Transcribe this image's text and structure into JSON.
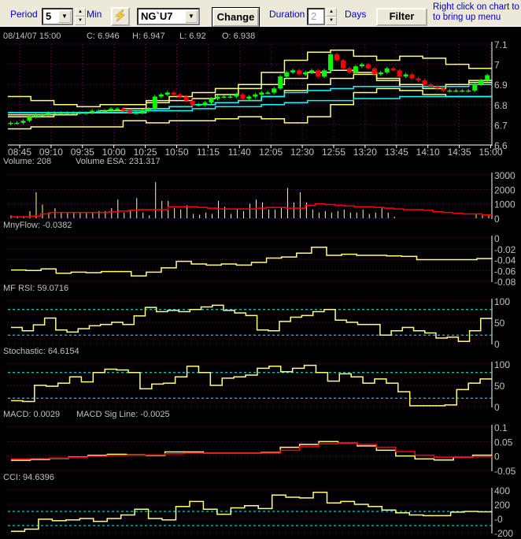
{
  "toolbar": {
    "period_label": "Period",
    "period_value": "5",
    "period_unit": "Min",
    "symbol": "NG`U7",
    "change_label": "Change",
    "duration_label": "Duration",
    "duration_value": "2",
    "duration_unit": "Days",
    "filter_label": "Filter",
    "hint_line1": "Right click on chart to",
    "hint_line2": "to bring up menu",
    "refresh_icon": "lightning-bolt-icon"
  },
  "info": {
    "datetime": "08/14/07 15:00",
    "close": "C: 6.946",
    "high": "H: 6.947",
    "low": "L: 6.92",
    "open": "O: 6.938"
  },
  "colors": {
    "up": "#00ff00",
    "down": "#ff0000",
    "band": "#ffff80",
    "ma": "#00ffff",
    "grid": "#800080",
    "text": "#c0c0c0",
    "signal": "#ff0000"
  },
  "chart_data": [
    {
      "type": "candlestick",
      "name": "price",
      "y_ticks": [
        "7.1",
        "7",
        "6.9",
        "6.8",
        "6.7",
        "6.6"
      ],
      "ylim": [
        6.6,
        7.1
      ],
      "x_ticks": [
        "08:45",
        "09:10",
        "09:35",
        "10:00",
        "10:25",
        "10:50",
        "11:15",
        "11:40",
        "12:05",
        "12:30",
        "12:55",
        "13:20",
        "13:45",
        "14:10",
        "14:35",
        "15:00"
      ],
      "close": [
        6.71,
        6.71,
        6.72,
        6.74,
        6.75,
        6.75,
        6.76,
        6.76,
        6.76,
        6.76,
        6.76,
        6.76,
        6.76,
        6.77,
        6.77,
        6.77,
        6.78,
        6.78,
        6.77,
        6.76,
        6.76,
        6.77,
        6.78,
        6.84,
        6.85,
        6.86,
        6.85,
        6.84,
        6.82,
        6.8,
        6.8,
        6.81,
        6.83,
        6.84,
        6.84,
        6.84,
        6.85,
        6.83,
        6.84,
        6.85,
        6.86,
        6.86,
        6.88,
        6.94,
        6.96,
        6.97,
        6.95,
        6.96,
        6.97,
        6.94,
        6.97,
        7.05,
        7.02,
        6.98,
        6.96,
        6.99,
        7.0,
        6.98,
        6.95,
        6.96,
        6.98,
        6.97,
        6.94,
        6.95,
        6.93,
        6.92,
        6.9,
        6.89,
        6.88,
        6.87,
        6.87,
        6.87,
        6.87,
        6.87,
        6.9,
        6.92,
        6.946
      ],
      "bands": {
        "upper": [
          6.84,
          6.82,
          6.8,
          6.79,
          6.8,
          6.8,
          6.82,
          6.84,
          6.86,
          6.88,
          6.9,
          6.96,
          7.02,
          7.06,
          7.07,
          7.04,
          7.02,
          7.04,
          7.03,
          7.0,
          6.98
        ],
        "inner_upper": [
          6.75,
          6.75,
          6.75,
          6.76,
          6.77,
          6.78,
          6.81,
          6.82,
          6.83,
          6.85,
          6.88,
          6.9,
          6.93,
          6.96,
          6.97,
          6.96,
          6.93,
          6.9,
          6.89,
          6.9,
          6.92
        ],
        "inner_lower": [
          6.74,
          6.74,
          6.75,
          6.76,
          6.76,
          6.76,
          6.78,
          6.79,
          6.8,
          6.81,
          6.82,
          6.84,
          6.87,
          6.9,
          6.93,
          6.95,
          6.92,
          6.89,
          6.88,
          6.9,
          6.91
        ],
        "lower": [
          6.68,
          6.69,
          6.69,
          6.69,
          6.69,
          6.72,
          6.71,
          6.72,
          6.72,
          6.73,
          6.74,
          6.73,
          6.71,
          6.74,
          6.8,
          6.86,
          6.88,
          6.87,
          6.85,
          6.84,
          6.84
        ],
        "ma_fast": [
          6.76,
          6.76,
          6.76,
          6.76,
          6.76,
          6.77,
          6.78,
          6.79,
          6.8,
          6.81,
          6.82,
          6.84,
          6.86,
          6.87,
          6.88,
          6.89,
          6.89,
          6.89,
          6.89,
          6.89,
          6.9
        ],
        "ma_slow": [
          6.76,
          6.76,
          6.76,
          6.76,
          6.76,
          6.76,
          6.77,
          6.77,
          6.78,
          6.79,
          6.79,
          6.8,
          6.81,
          6.82,
          6.82,
          6.83,
          6.83,
          6.84,
          6.84,
          6.84,
          6.84
        ]
      }
    },
    {
      "type": "bar",
      "name": "volume",
      "label": "Volume: 208",
      "label2": "Volume ESA: 231.317",
      "y_ticks": [
        "3000",
        "2000",
        "1000",
        "0"
      ],
      "ylim": [
        0,
        3000
      ],
      "values": [
        200,
        150,
        150,
        500,
        1800,
        950,
        400,
        700,
        400,
        400,
        400,
        400,
        400,
        400,
        500,
        500,
        700,
        1300,
        400,
        500,
        1400,
        400,
        200,
        2500,
        1200,
        1200,
        700,
        600,
        900,
        300,
        250,
        400,
        300,
        1200,
        800,
        300,
        600,
        500,
        1000,
        1300,
        1100,
        600,
        600,
        700,
        2100,
        1100,
        1800,
        1100,
        600,
        400,
        500,
        400,
        500,
        600,
        400,
        400,
        600,
        300,
        400,
        700,
        400,
        100,
        0,
        0,
        0,
        0,
        0,
        0,
        0,
        0,
        0,
        0,
        0,
        0,
        300,
        200,
        208
      ],
      "esa": [
        100,
        100,
        150,
        300,
        400,
        400,
        400,
        400,
        400,
        400,
        450,
        500,
        550,
        600,
        600,
        600,
        800,
        800,
        800,
        750,
        700,
        650,
        650,
        650,
        650,
        700,
        750,
        750,
        700,
        700,
        900,
        1000,
        950,
        900,
        850,
        800,
        800,
        750,
        700,
        650,
        600,
        600,
        550,
        450,
        400,
        350,
        300,
        300,
        231
      ]
    },
    {
      "type": "line",
      "name": "money-flow",
      "label": "MnyFlow: -0.0382",
      "y_ticks": [
        "0",
        "-0.02",
        "-0.04",
        "-0.06",
        "-0.08"
      ],
      "ylim": [
        -0.08,
        0
      ],
      "values": [
        -0.059,
        -0.06,
        -0.057,
        -0.065,
        -0.063,
        -0.064,
        -0.062,
        -0.062,
        -0.07,
        -0.063,
        -0.055,
        -0.043,
        -0.048,
        -0.05,
        -0.048,
        -0.05,
        -0.045,
        -0.037,
        -0.035,
        -0.028,
        -0.017,
        -0.032,
        -0.03,
        -0.032,
        -0.032,
        -0.033,
        -0.034,
        -0.04,
        -0.04,
        -0.04,
        -0.04,
        -0.038
      ]
    },
    {
      "type": "line",
      "name": "mf-rsi",
      "label": "MF RSI: 59.0716",
      "y_ticks": [
        "100",
        "50",
        "0"
      ],
      "ylim": [
        0,
        100
      ],
      "levels": [
        80,
        20
      ],
      "values": [
        38,
        30,
        44,
        60,
        32,
        27,
        35,
        42,
        45,
        50,
        45,
        65,
        85,
        75,
        78,
        75,
        80,
        86,
        90,
        78,
        72,
        66,
        32,
        30,
        52,
        62,
        66,
        75,
        80,
        55,
        50,
        45,
        45,
        20,
        30,
        38,
        30,
        25,
        13,
        15,
        5,
        30,
        59
      ]
    },
    {
      "type": "line",
      "name": "stochastic",
      "label": "Stochastic: 64.6154",
      "y_ticks": [
        "100",
        "50",
        "0"
      ],
      "ylim": [
        0,
        100
      ],
      "levels": [
        80,
        20
      ],
      "values": [
        14,
        12,
        50,
        48,
        55,
        70,
        58,
        80,
        88,
        86,
        80,
        42,
        53,
        55,
        70,
        95,
        80,
        50,
        67,
        70,
        74,
        90,
        95,
        82,
        90,
        97,
        80,
        60,
        77,
        70,
        55,
        65,
        55,
        35,
        2,
        2,
        2,
        4,
        40,
        55,
        65
      ]
    },
    {
      "type": "line",
      "name": "macd",
      "label": "MACD: 0.0029",
      "label2": "MACD Sig Line: -0.0025",
      "y_ticks": [
        "0.1",
        "0.05",
        "0",
        "-0.05"
      ],
      "ylim": [
        -0.05,
        0.1
      ],
      "values": [
        -0.015,
        -0.012,
        -0.008,
        -0.003,
        0.002,
        0.006,
        0.004,
        0.002,
        0.014,
        0.014,
        0.01,
        0.01,
        0.01,
        0.012,
        0.03,
        0.04,
        0.05,
        0.045,
        0.035,
        0.02,
        0.0,
        -0.01,
        -0.014,
        -0.004,
        0.003
      ],
      "signal": [
        -0.01,
        -0.009,
        -0.007,
        -0.004,
        -0.001,
        0.002,
        0.003,
        0.004,
        0.008,
        0.01,
        0.01,
        0.01,
        0.01,
        0.01,
        0.02,
        0.032,
        0.042,
        0.045,
        0.04,
        0.03,
        0.015,
        0.003,
        -0.004,
        -0.004,
        -0.0025
      ]
    },
    {
      "type": "line",
      "name": "cci",
      "label": "CCI: 94.6396",
      "y_ticks": [
        "400",
        "200",
        "-0",
        "-200"
      ],
      "ylim": [
        -200,
        400
      ],
      "levels": [
        100,
        -100
      ],
      "values": [
        -180,
        -150,
        -10,
        -30,
        -20,
        0,
        -40,
        0,
        50,
        130,
        0,
        -20,
        170,
        240,
        130,
        60,
        150,
        180,
        140,
        330,
        300,
        290,
        370,
        220,
        240,
        200,
        170,
        120,
        80,
        50,
        40,
        40,
        90,
        100,
        94.6
      ]
    }
  ]
}
